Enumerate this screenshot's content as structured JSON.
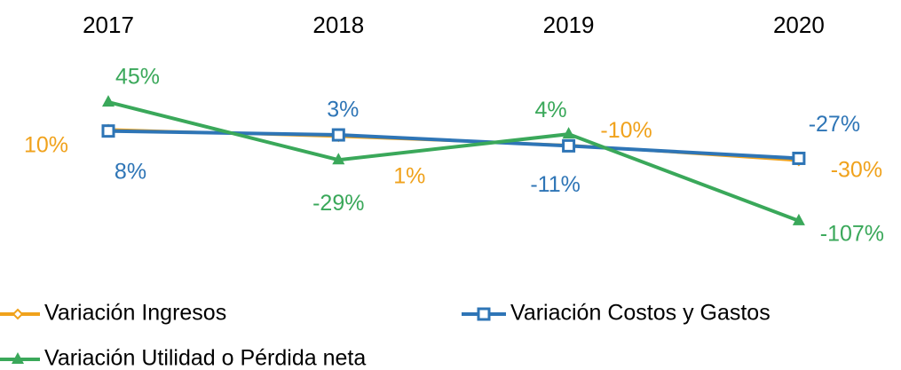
{
  "chart_data": {
    "type": "line",
    "categories": [
      "2017",
      "2018",
      "2019",
      "2020"
    ],
    "ylim": [
      -120,
      60
    ],
    "series": [
      {
        "name": "Variación Ingresos",
        "color": "#f0a21c",
        "marker": "diamond",
        "values": [
          10,
          1,
          -10,
          -30
        ],
        "value_labels": [
          "10%",
          "1%",
          "-10%",
          "-30%"
        ]
      },
      {
        "name": "Variación Costos y Gastos",
        "color": "#2e75b6",
        "marker": "square",
        "values": [
          8,
          3,
          -11,
          -27
        ],
        "value_labels": [
          "8%",
          "3%",
          "-11%",
          "-27%"
        ]
      },
      {
        "name": "Variación Utilidad o Pérdida neta",
        "color": "#3aa85a",
        "marker": "triangle",
        "values": [
          45,
          -29,
          4,
          -107
        ],
        "value_labels": [
          "45%",
          "-29%",
          "4%",
          "-107%"
        ]
      }
    ],
    "legend": "bottom"
  }
}
